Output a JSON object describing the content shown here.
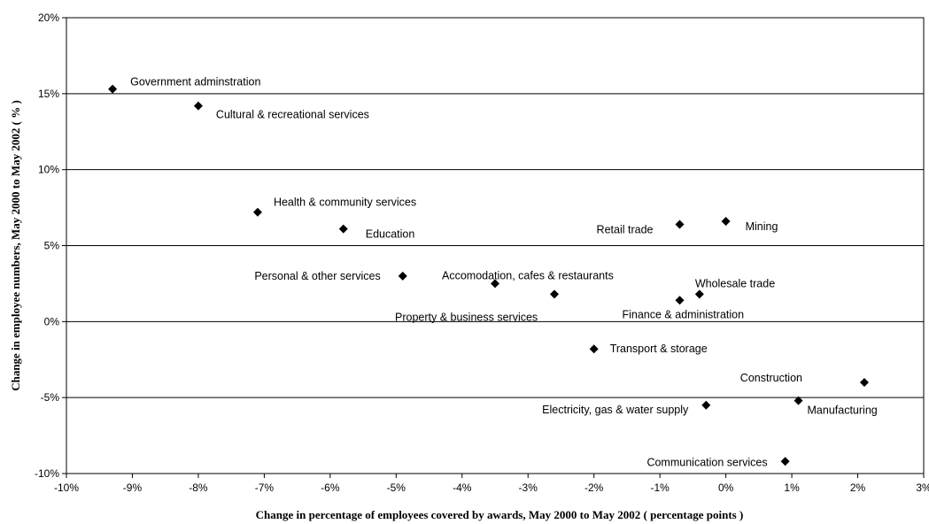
{
  "chart_data": {
    "type": "scatter",
    "title": "",
    "xlabel": "Change in percentage of employees covered by awards, May 2000 to May 2002 ( percentage points )",
    "ylabel": "Change in employee numbers, May 2000 to May 2002 ( % )",
    "xlim": [
      -10,
      3
    ],
    "ylim": [
      -10,
      20
    ],
    "xticks": [
      -10,
      -9,
      -8,
      -7,
      -6,
      -5,
      -4,
      -3,
      -2,
      -1,
      0,
      1,
      2,
      3
    ],
    "yticks": [
      -10,
      -5,
      0,
      5,
      10,
      15,
      20
    ],
    "xtick_labels": [
      "-10%",
      "-9%",
      "-8%",
      "-7%",
      "-6%",
      "-5%",
      "-4%",
      "-3%",
      "-2%",
      "-1%",
      "0%",
      "1%",
      "2%",
      "3%"
    ],
    "ytick_labels": [
      "-10%",
      "-5%",
      "0%",
      "5%",
      "10%",
      "15%",
      "20%"
    ],
    "grid": "horizontal",
    "legend": "none",
    "marker": "diamond",
    "marker_color": "#000000",
    "points": [
      {
        "label": "Government adminstration",
        "x": -9.3,
        "y": 15.3
      },
      {
        "label": "Cultural & recreational services",
        "x": -8.0,
        "y": 14.2
      },
      {
        "label": "Health & community services",
        "x": -7.1,
        "y": 7.2
      },
      {
        "label": "Education",
        "x": -5.8,
        "y": 6.1
      },
      {
        "label": "Personal & other services",
        "x": -4.9,
        "y": 3.0
      },
      {
        "label": "Accomodation, cafes & restaurants",
        "x": -3.5,
        "y": 2.5
      },
      {
        "label": "Property & business services",
        "x": -2.6,
        "y": 1.8
      },
      {
        "label": "Retail trade",
        "x": -0.7,
        "y": 6.4
      },
      {
        "label": "Mining",
        "x": 0.0,
        "y": 6.6
      },
      {
        "label": "Wholesale trade",
        "x": -0.4,
        "y": 1.8
      },
      {
        "label": "Finance & administration",
        "x": -0.7,
        "y": 1.4
      },
      {
        "label": "Transport & storage",
        "x": -2.0,
        "y": -1.8
      },
      {
        "label": "Construction",
        "x": 2.1,
        "y": -4.0
      },
      {
        "label": "Manufacturing",
        "x": 1.1,
        "y": -5.2
      },
      {
        "label": "Electricity, gas & water supply",
        "x": -0.3,
        "y": -5.5
      },
      {
        "label": "Communication services",
        "x": 0.9,
        "y": -9.2
      }
    ]
  }
}
